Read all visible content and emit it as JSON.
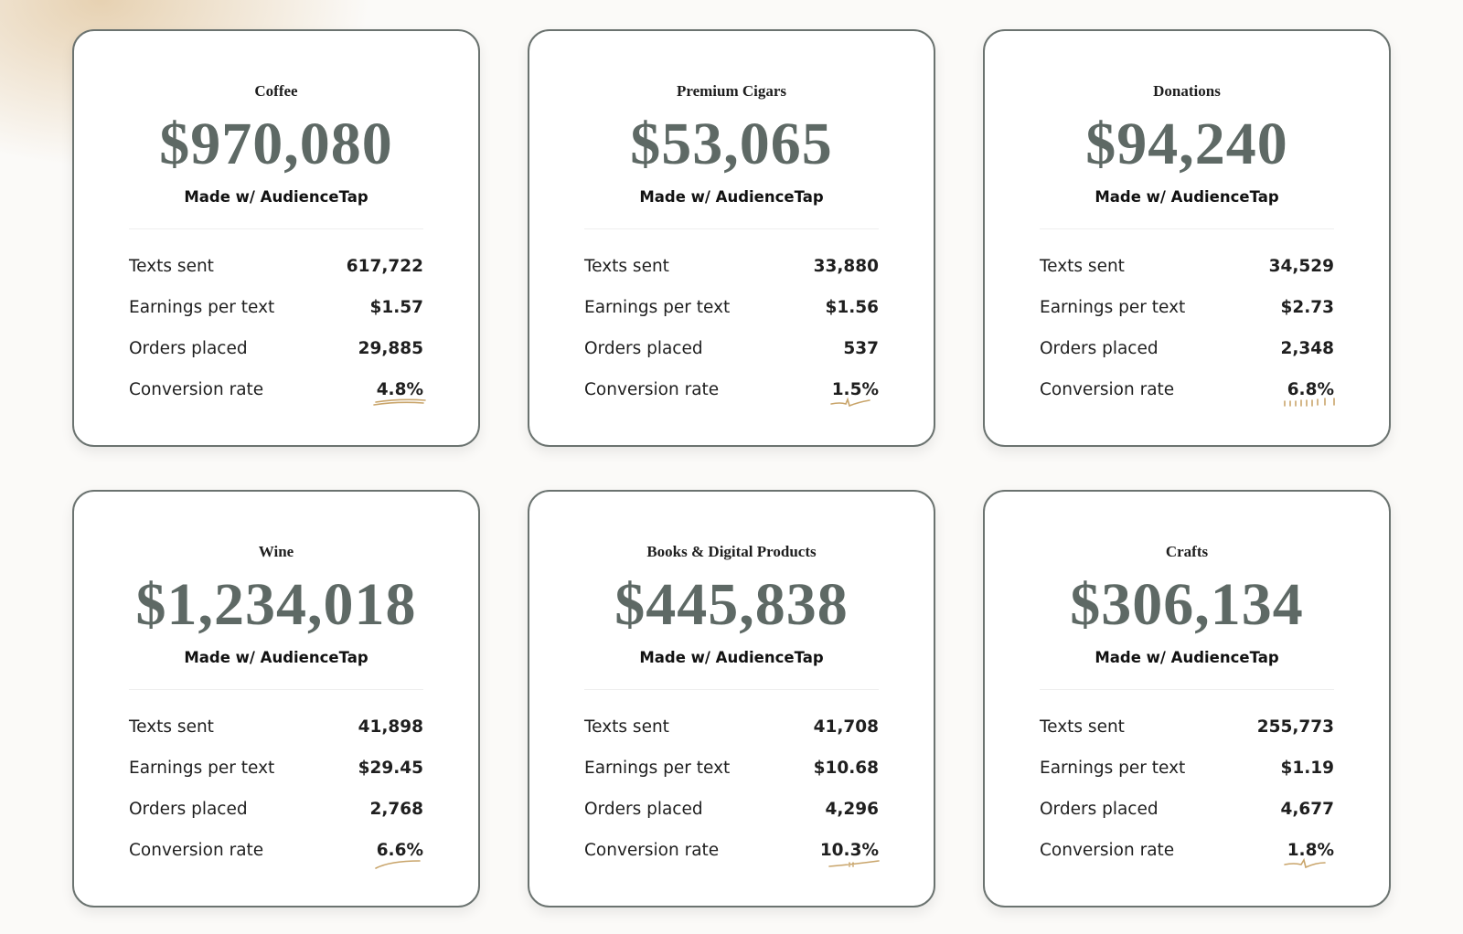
{
  "cards": [
    {
      "title": "Coffee",
      "amount": "$970,080",
      "tagline": "Made w/ AudienceTap",
      "rows": [
        [
          "Texts sent",
          "617,722"
        ],
        [
          "Earnings per text",
          "$1.57"
        ],
        [
          "Orders placed",
          "29,885"
        ],
        [
          "Conversion rate",
          "4.8%"
        ]
      ]
    },
    {
      "title": "Premium Cigars",
      "amount": "$53,065",
      "tagline": "Made w/ AudienceTap",
      "rows": [
        [
          "Texts sent",
          "33,880"
        ],
        [
          "Earnings per text",
          "$1.56"
        ],
        [
          "Orders placed",
          "537"
        ],
        [
          "Conversion rate",
          "1.5%"
        ]
      ]
    },
    {
      "title": "Donations",
      "amount": "$94,240",
      "tagline": "Made w/ AudienceTap",
      "rows": [
        [
          "Texts sent",
          "34,529"
        ],
        [
          "Earnings per text",
          "$2.73"
        ],
        [
          "Orders placed",
          "2,348"
        ],
        [
          "Conversion rate",
          "6.8%"
        ]
      ]
    },
    {
      "title": "Wine",
      "amount": "$1,234,018",
      "tagline": "Made w/ AudienceTap",
      "rows": [
        [
          "Texts sent",
          "41,898"
        ],
        [
          "Earnings per text",
          "$29.45"
        ],
        [
          "Orders placed",
          "2,768"
        ],
        [
          "Conversion rate",
          "6.6%"
        ]
      ]
    },
    {
      "title": "Books & Digital Products",
      "amount": "$445,838",
      "tagline": "Made w/ AudienceTap",
      "rows": [
        [
          "Texts sent",
          "41,708"
        ],
        [
          "Earnings per text",
          "$10.68"
        ],
        [
          "Orders placed",
          "4,296"
        ],
        [
          "Conversion rate",
          "10.3%"
        ]
      ]
    },
    {
      "title": "Crafts",
      "amount": "$306,134",
      "tagline": "Made w/ AudienceTap",
      "rows": [
        [
          "Texts sent",
          "255,773"
        ],
        [
          "Earnings per text",
          "$1.19"
        ],
        [
          "Orders placed",
          "4,677"
        ],
        [
          "Conversion rate",
          "1.8%"
        ]
      ]
    }
  ]
}
